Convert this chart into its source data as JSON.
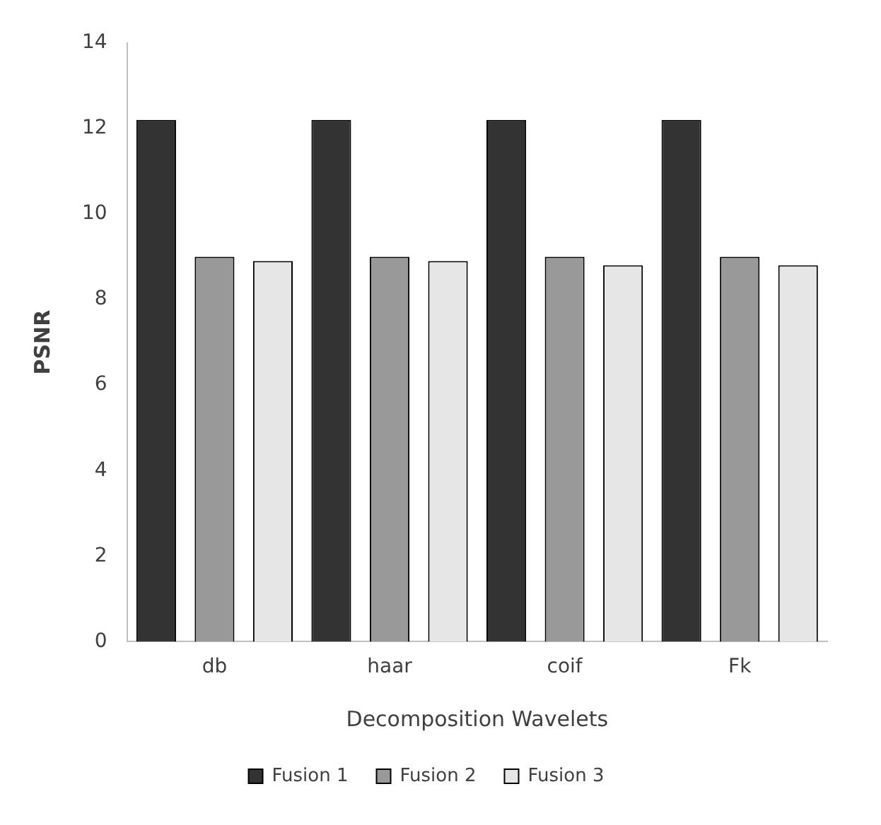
{
  "chart_data": {
    "type": "bar",
    "xlabel": "Decomposition Wavelets",
    "ylabel": "PSNR",
    "categories": [
      "db",
      "haar",
      "coif",
      "Fk"
    ],
    "series": [
      {
        "name": "Fusion 1",
        "color": "#333333",
        "values": [
          12.2,
          12.2,
          12.2,
          12.2
        ]
      },
      {
        "name": "Fusion 2",
        "color": "#999999",
        "values": [
          9.0,
          9.0,
          9.0,
          9.0
        ]
      },
      {
        "name": "Fusion 3",
        "color": "#e6e6e6",
        "values": [
          8.9,
          8.9,
          8.8,
          8.8
        ]
      }
    ],
    "ylim": [
      0,
      14
    ],
    "yticks": [
      0,
      2,
      4,
      6,
      8,
      10,
      12,
      14
    ],
    "grid": false,
    "legend": "bottom"
  }
}
